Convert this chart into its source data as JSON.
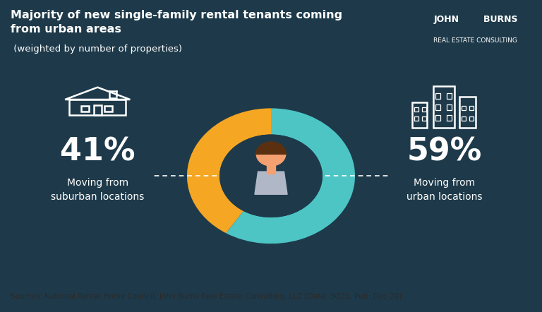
{
  "title_bold": "Majority of new single-family rental tenants coming\nfrom urban areas",
  "title_light": " (weighted by number of properties)",
  "header_bg": "#2d7f8a",
  "body_bg": "#1e3a4a",
  "footer_bg": "#c8c8c8",
  "footer_text": "Sources: National Rental Home Council; John Burns Real Estate Consulting, LLC (Data: 3Q20, Pub: Dec-20)",
  "suburban_pct": 41,
  "urban_pct": 59,
  "suburban_label1": "Moving from",
  "suburban_label2": "suburban locations",
  "urban_label1": "Moving from",
  "urban_label2": "urban locations",
  "color_orange": "#F5A623",
  "color_teal": "#4DC5C5",
  "donut_bg": "#1e3a4a",
  "text_white": "#ffffff",
  "logo_text": "JOHN        BURNS",
  "logo_sub": "REAL ESTATE CONSULTING",
  "sep_color": "#1a3545",
  "person_skin": "#F5A070",
  "person_hair": "#5a3010",
  "person_shirt": "#b0b8c8"
}
